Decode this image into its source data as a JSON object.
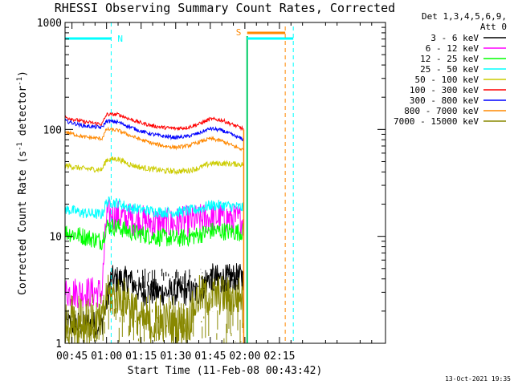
{
  "chart_data": {
    "type": "line",
    "title": "RHESSI Observing Summary Count Rates, Corrected",
    "xlabel": "Start Time (11-Feb-08 00:43:42)",
    "ylabel_main": "Corrected Count Rate (s",
    "ylabel_sup1": "-1",
    "ylabel_mid": " detector",
    "ylabel_sup2": "-1",
    "ylabel_end": ")",
    "yscale": "log",
    "xlim": [
      42.0,
      181.0
    ],
    "ylim": [
      1,
      1000
    ],
    "x_ticks": [
      {
        "value": 45,
        "label": "00:45"
      },
      {
        "value": 60,
        "label": "01:00"
      },
      {
        "value": 75,
        "label": "01:15"
      },
      {
        "value": 90,
        "label": "01:30"
      },
      {
        "value": 105,
        "label": "01:45"
      },
      {
        "value": 120,
        "label": "02:00"
      },
      {
        "value": 135,
        "label": "02:15"
      }
    ],
    "y_ticks": [
      {
        "value": 1,
        "label": "1"
      },
      {
        "value": 10,
        "label": "10"
      },
      {
        "value": 100,
        "label": "100"
      },
      {
        "value": 1000,
        "label": "1000"
      }
    ],
    "legend_header": [
      "Det 1,3,4,5,6,9,",
      "Att 0"
    ],
    "series": [
      {
        "name": "3 - 6 keV",
        "color": "#000000",
        "x": [
          42,
          58,
          62,
          70,
          75,
          80,
          85,
          90,
          95,
          100,
          105,
          110,
          115,
          119.5
        ],
        "values": [
          1.5,
          1.5,
          4.0,
          3.9,
          3.0,
          3.0,
          3.0,
          3.0,
          3.0,
          3.0,
          4.2,
          4.0,
          4.2,
          4.1
        ]
      },
      {
        "name": "6 - 12 keV",
        "color": "#ff00ff",
        "x": [
          42,
          58,
          60,
          65,
          70,
          75,
          80,
          85,
          90,
          95,
          100,
          105,
          110,
          115,
          119.5
        ],
        "values": [
          3.0,
          3.0,
          16,
          15.5,
          14.5,
          14,
          13.5,
          13,
          13.3,
          13.8,
          14.2,
          15,
          15,
          14.5,
          14
        ]
      },
      {
        "name": "12 - 25 keV",
        "color": "#00ff00",
        "x": [
          42,
          50,
          58,
          60,
          65,
          70,
          75,
          80,
          85,
          90,
          95,
          100,
          105,
          110,
          115,
          119.5
        ],
        "values": [
          11,
          10,
          9,
          12.5,
          12.2,
          11,
          10.5,
          10,
          9.7,
          9.5,
          9.8,
          10.3,
          11.2,
          11.2,
          11,
          11
        ]
      },
      {
        "name": "25 - 50 keV",
        "color": "#00ffff",
        "x": [
          42,
          50,
          58,
          60,
          65,
          70,
          75,
          80,
          85,
          90,
          95,
          100,
          105,
          110,
          115,
          119.5
        ],
        "values": [
          18,
          16.5,
          16,
          21,
          20.5,
          18.5,
          17.8,
          17.2,
          16.8,
          16.8,
          17.2,
          18,
          19.5,
          19.5,
          19,
          18.5
        ]
      },
      {
        "name": "50 - 100 keV",
        "color": "#cccc00",
        "x": [
          42,
          50,
          58,
          60,
          65,
          70,
          75,
          80,
          85,
          90,
          95,
          100,
          105,
          110,
          115,
          119.5
        ],
        "values": [
          46,
          43,
          42,
          52,
          53,
          47,
          44,
          42.5,
          41,
          40.5,
          41,
          43.5,
          48,
          48,
          47.5,
          47
        ]
      },
      {
        "name": "100 - 300 keV",
        "color": "#ff0000",
        "x": [
          42,
          50,
          58,
          60,
          65,
          70,
          75,
          80,
          85,
          90,
          95,
          100,
          105,
          110,
          115,
          119.5
        ],
        "values": [
          130,
          118,
          112,
          138,
          138,
          125,
          115,
          108,
          104,
          102,
          104,
          112,
          125,
          122,
          110,
          101
        ]
      },
      {
        "name": "300 - 800 keV",
        "color": "#0000ff",
        "x": [
          42,
          50,
          58,
          60,
          65,
          70,
          75,
          80,
          85,
          90,
          95,
          100,
          105,
          110,
          115,
          119.5
        ],
        "values": [
          120,
          108,
          104,
          120,
          117,
          106,
          96,
          90,
          86,
          84,
          86,
          92,
          102,
          98,
          88,
          80
        ]
      },
      {
        "name": "800 - 7000 keV",
        "color": "#ff8800",
        "x": [
          42,
          50,
          58,
          60,
          65,
          70,
          75,
          80,
          85,
          90,
          95,
          100,
          105,
          110,
          115,
          119.5
        ],
        "values": [
          95,
          85,
          82,
          100,
          98,
          88,
          80,
          74,
          70,
          68,
          70,
          76,
          82,
          78,
          70,
          64
        ]
      },
      {
        "name": "7000 - 15000 keV",
        "color": "#888800",
        "x": [
          42,
          58,
          60,
          65,
          70,
          75,
          80,
          85,
          90,
          95,
          100,
          105,
          110,
          115,
          119.5
        ],
        "values": [
          1.5,
          1.5,
          2.8,
          2.8,
          2.5,
          1.6,
          1.5,
          1.6,
          1.5,
          1.5,
          2.8,
          2.8,
          2.8,
          2.7,
          2.8
        ]
      }
    ],
    "markers": [
      {
        "label": "N",
        "x": 62,
        "color": "#00ffff",
        "style": "dashed"
      },
      {
        "label": "S",
        "x": 120,
        "color": "#ff8800",
        "style": "solid"
      }
    ],
    "timestamp": "13-Oct-2021 19:35"
  }
}
